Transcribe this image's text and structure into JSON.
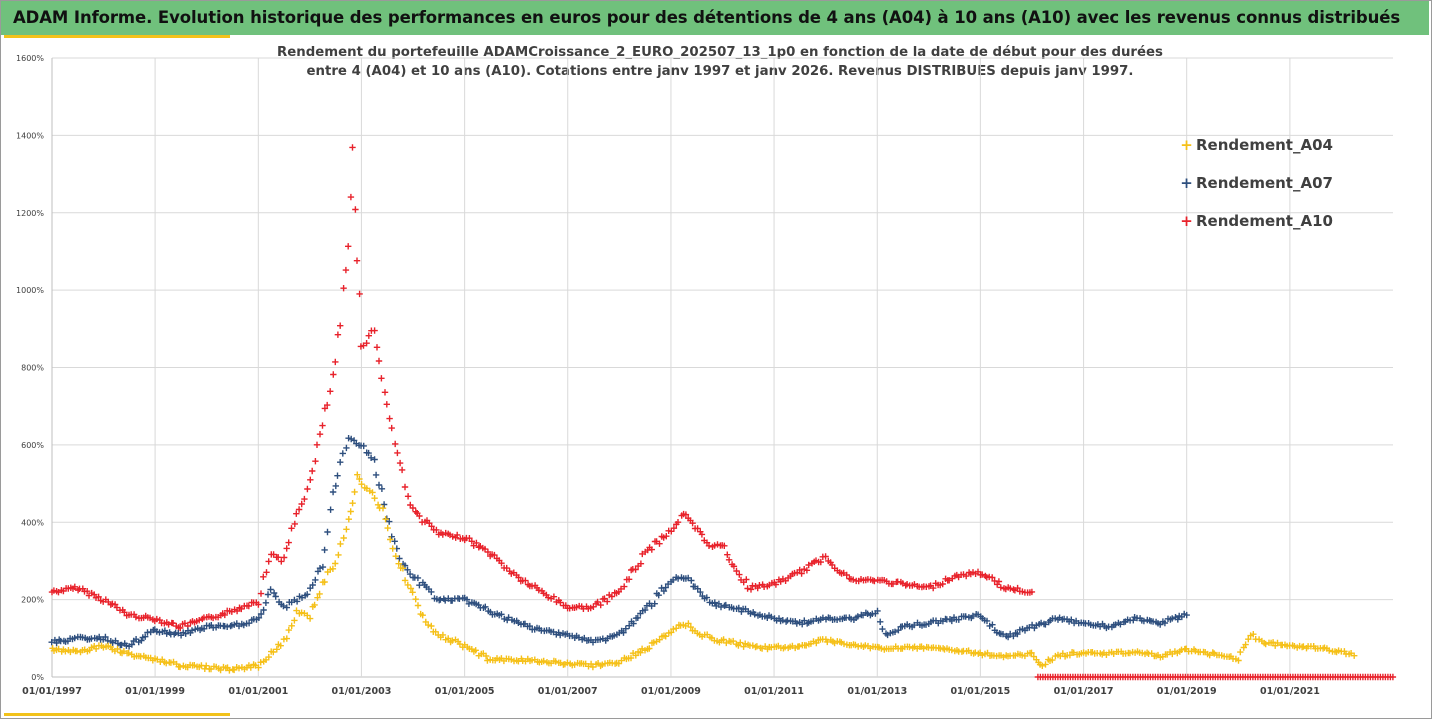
{
  "header": {
    "title": "ADAM Informe. Evolution historique des performances en euros pour des détentions de 4 ans (A04) à 10 ans (A10) avec les revenus connus distribués"
  },
  "chart": {
    "subtitle_line1": "Rendement du portefeuille ADAMCroissance_2_EURO_202507_13_1p0  en fonction de la date de début pour des durées",
    "subtitle_line2": "entre 4 (A04) et 10 ans (A10). Cotations entre janv 1997 et janv 2026. Revenus DISTRIBUES depuis janv 1997."
  },
  "colors": {
    "banner": "#70c17c",
    "accent_bar": "#f2c21b",
    "A04": "#f5c018",
    "A07": "#2e4f7e",
    "A10": "#e8222b",
    "grid": "#d9d9d9"
  },
  "chart_data": {
    "type": "scatter",
    "marker": "plus",
    "x_axis": {
      "kind": "date",
      "min": "1997-01-01",
      "max": "2023-01-01",
      "tick_labels": [
        "01/01/1997",
        "01/01/1999",
        "01/01/2001",
        "01/01/2003",
        "01/01/2005",
        "01/01/2007",
        "01/01/2009",
        "01/01/2011",
        "01/01/2013",
        "01/01/2015",
        "01/01/2017",
        "01/01/2019",
        "01/01/2021"
      ]
    },
    "y_axis": {
      "min": 0,
      "max": 1600,
      "step": 200,
      "unit": "%",
      "tick_labels": [
        "0%",
        "200%",
        "400%",
        "600%",
        "800%",
        "1000%",
        "1200%",
        "1400%",
        "1600%"
      ]
    },
    "grid": "vertical and horizontal",
    "legend_position": "right",
    "series": [
      {
        "name": "Rendement_A04",
        "color": "#f5c018",
        "points": [
          [
            "1997-01-01",
            70
          ],
          [
            "1997-07-01",
            65
          ],
          [
            "1998-01-01",
            80
          ],
          [
            "1998-07-01",
            60
          ],
          [
            "1999-01-01",
            45
          ],
          [
            "1999-07-01",
            30
          ],
          [
            "2000-01-01",
            25
          ],
          [
            "2000-07-01",
            20
          ],
          [
            "2001-01-01",
            30
          ],
          [
            "2001-04-01",
            60
          ],
          [
            "2001-07-01",
            90
          ],
          [
            "2001-10-01",
            170
          ],
          [
            "2002-01-01",
            160
          ],
          [
            "2002-04-01",
            240
          ],
          [
            "2002-07-01",
            300
          ],
          [
            "2002-10-01",
            400
          ],
          [
            "2002-12-01",
            520
          ],
          [
            "2003-03-01",
            480
          ],
          [
            "2003-06-01",
            430
          ],
          [
            "2003-09-01",
            310
          ],
          [
            "2004-01-01",
            220
          ],
          [
            "2004-04-01",
            140
          ],
          [
            "2004-07-01",
            110
          ],
          [
            "2005-01-01",
            80
          ],
          [
            "2005-07-01",
            45
          ],
          [
            "2006-01-01",
            45
          ],
          [
            "2006-07-01",
            40
          ],
          [
            "2007-01-01",
            35
          ],
          [
            "2007-07-01",
            30
          ],
          [
            "2008-01-01",
            40
          ],
          [
            "2008-07-01",
            70
          ],
          [
            "2009-01-01",
            120
          ],
          [
            "2009-04-01",
            140
          ],
          [
            "2009-10-01",
            100
          ],
          [
            "2010-07-01",
            80
          ],
          [
            "2011-01-01",
            75
          ],
          [
            "2011-07-01",
            80
          ],
          [
            "2012-01-01",
            95
          ],
          [
            "2012-07-01",
            85
          ],
          [
            "2013-01-01",
            75
          ],
          [
            "2013-07-01",
            75
          ],
          [
            "2014-01-01",
            75
          ],
          [
            "2014-07-01",
            70
          ],
          [
            "2015-01-01",
            60
          ],
          [
            "2015-07-01",
            55
          ],
          [
            "2016-01-01",
            60
          ],
          [
            "2016-03-01",
            30
          ],
          [
            "2016-07-01",
            55
          ],
          [
            "2017-01-01",
            65
          ],
          [
            "2017-07-01",
            60
          ],
          [
            "2018-01-01",
            65
          ],
          [
            "2018-07-01",
            55
          ],
          [
            "2019-01-01",
            70
          ],
          [
            "2019-07-01",
            60
          ],
          [
            "2020-01-01",
            45
          ],
          [
            "2020-04-01",
            110
          ],
          [
            "2020-07-01",
            90
          ],
          [
            "2021-01-01",
            80
          ],
          [
            "2021-07-01",
            75
          ],
          [
            "2022-01-01",
            65
          ],
          [
            "2022-04-01",
            55
          ]
        ]
      },
      {
        "name": "Rendement_A07",
        "color": "#2e4f7e",
        "points": [
          [
            "1997-01-01",
            90
          ],
          [
            "1997-07-01",
            100
          ],
          [
            "1998-01-01",
            100
          ],
          [
            "1998-07-01",
            80
          ],
          [
            "1999-01-01",
            120
          ],
          [
            "1999-07-01",
            110
          ],
          [
            "2000-01-01",
            130
          ],
          [
            "2000-07-01",
            130
          ],
          [
            "2001-01-01",
            150
          ],
          [
            "2001-04-01",
            220
          ],
          [
            "2001-07-01",
            180
          ],
          [
            "2001-10-01",
            200
          ],
          [
            "2002-01-01",
            220
          ],
          [
            "2002-04-01",
            300
          ],
          [
            "2002-07-01",
            500
          ],
          [
            "2002-10-01",
            620
          ],
          [
            "2003-01-01",
            600
          ],
          [
            "2003-04-01",
            560
          ],
          [
            "2003-07-01",
            420
          ],
          [
            "2003-10-01",
            300
          ],
          [
            "2004-01-01",
            260
          ],
          [
            "2004-07-01",
            200
          ],
          [
            "2005-01-01",
            200
          ],
          [
            "2005-07-01",
            170
          ],
          [
            "2006-01-01",
            140
          ],
          [
            "2006-07-01",
            120
          ],
          [
            "2007-01-01",
            110
          ],
          [
            "2007-07-01",
            90
          ],
          [
            "2008-01-01",
            110
          ],
          [
            "2008-07-01",
            170
          ],
          [
            "2009-01-01",
            250
          ],
          [
            "2009-04-01",
            260
          ],
          [
            "2009-10-01",
            190
          ],
          [
            "2010-07-01",
            170
          ],
          [
            "2011-01-01",
            150
          ],
          [
            "2011-07-01",
            140
          ],
          [
            "2012-01-01",
            150
          ],
          [
            "2012-07-01",
            150
          ],
          [
            "2013-01-01",
            170
          ],
          [
            "2013-03-01",
            110
          ],
          [
            "2013-07-01",
            130
          ],
          [
            "2014-01-01",
            140
          ],
          [
            "2014-07-01",
            150
          ],
          [
            "2015-01-01",
            160
          ],
          [
            "2015-07-01",
            100
          ],
          [
            "2016-01-01",
            130
          ],
          [
            "2016-07-01",
            150
          ],
          [
            "2017-01-01",
            140
          ],
          [
            "2017-07-01",
            130
          ],
          [
            "2018-01-01",
            150
          ],
          [
            "2018-07-01",
            140
          ],
          [
            "2019-01-01",
            160
          ]
        ]
      },
      {
        "name": "Rendement_A10",
        "color": "#e8222b",
        "points": [
          [
            "1997-01-01",
            220
          ],
          [
            "1997-07-01",
            230
          ],
          [
            "1998-01-01",
            200
          ],
          [
            "1998-07-01",
            160
          ],
          [
            "1999-01-01",
            150
          ],
          [
            "1999-07-01",
            130
          ],
          [
            "2000-01-01",
            150
          ],
          [
            "2000-07-01",
            170
          ],
          [
            "2001-01-01",
            200
          ],
          [
            "2001-04-01",
            320
          ],
          [
            "2001-07-01",
            300
          ],
          [
            "2001-10-01",
            420
          ],
          [
            "2002-01-01",
            500
          ],
          [
            "2002-04-01",
            650
          ],
          [
            "2002-07-01",
            800
          ],
          [
            "2002-10-01",
            1100
          ],
          [
            "2002-11-01",
            1380
          ],
          [
            "2003-01-01",
            850
          ],
          [
            "2003-04-01",
            900
          ],
          [
            "2003-07-01",
            700
          ],
          [
            "2003-10-01",
            550
          ],
          [
            "2004-01-01",
            430
          ],
          [
            "2004-07-01",
            370
          ],
          [
            "2005-01-01",
            360
          ],
          [
            "2005-07-01",
            320
          ],
          [
            "2006-01-01",
            260
          ],
          [
            "2006-07-01",
            220
          ],
          [
            "2007-01-01",
            180
          ],
          [
            "2007-07-01",
            180
          ],
          [
            "2008-01-01",
            220
          ],
          [
            "2008-07-01",
            320
          ],
          [
            "2009-01-01",
            380
          ],
          [
            "2009-04-01",
            420
          ],
          [
            "2009-10-01",
            340
          ],
          [
            "2010-01-01",
            340
          ],
          [
            "2010-07-01",
            230
          ],
          [
            "2011-01-01",
            240
          ],
          [
            "2011-07-01",
            270
          ],
          [
            "2012-01-01",
            310
          ],
          [
            "2012-07-01",
            250
          ],
          [
            "2013-01-01",
            250
          ],
          [
            "2013-07-01",
            240
          ],
          [
            "2014-01-01",
            230
          ],
          [
            "2014-07-01",
            260
          ],
          [
            "2015-01-01",
            270
          ],
          [
            "2015-07-01",
            230
          ],
          [
            "2016-01-01",
            220
          ]
        ],
        "flat_zero_from": "2016-01-01",
        "flat_zero_to": "2023-01-01"
      }
    ]
  }
}
